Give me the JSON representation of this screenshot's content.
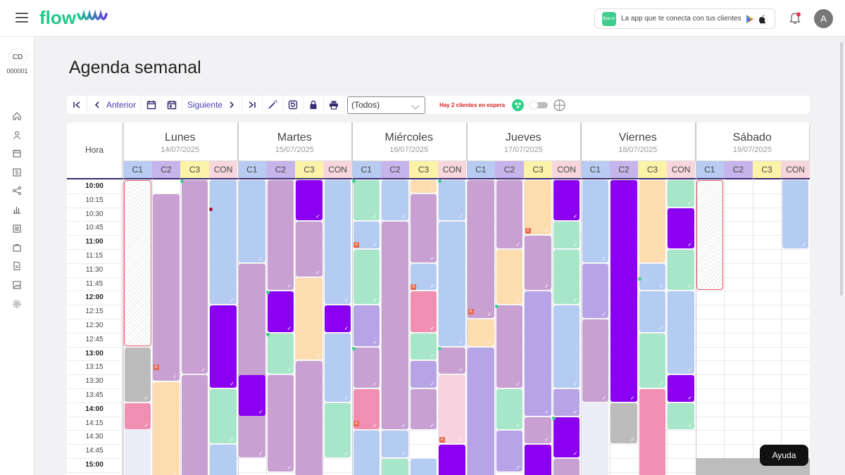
{
  "header": {
    "logo_text": "flow",
    "promo_badge": "flow er",
    "promo_text": "La app que te conecta con tus clientes",
    "avatar_letter": "A"
  },
  "sidebar": {
    "initials": "CD",
    "account_number": "000001",
    "icons": [
      "home-icon",
      "user-icon",
      "calendar-icon",
      "money-icon",
      "share-icon",
      "chart-icon",
      "list-icon",
      "briefcase-icon",
      "document-icon",
      "image-icon",
      "gear-icon"
    ]
  },
  "page": {
    "title": "Agenda semanal"
  },
  "toolbar": {
    "prev_label": "Anterior",
    "next_label": "Siguiente",
    "filter_value": "(Todos)",
    "waiting_text": "Hay 2 clientes en espera"
  },
  "grid": {
    "hora_label": "Hora",
    "days": [
      {
        "name": "Lunes",
        "date": "14/07/2025"
      },
      {
        "name": "Martes",
        "date": "15/07/2025"
      },
      {
        "name": "Miércoles",
        "date": "16/07/2025"
      },
      {
        "name": "Jueves",
        "date": "17/07/2025"
      },
      {
        "name": "Viernes",
        "date": "18/07/2025"
      },
      {
        "name": "Sábado",
        "date": "19/07/2025"
      }
    ],
    "columns": [
      "C1",
      "C2",
      "C3",
      "CON"
    ],
    "column_colors": [
      "#b8ccf2",
      "#c6b5ea",
      "#fdf3a8",
      "#f7d6de"
    ],
    "times": [
      "10:00",
      "10:15",
      "10:30",
      "10:45",
      "11:00",
      "11:15",
      "11:30",
      "11:45",
      "12:00",
      "12:15",
      "12:30",
      "12:45",
      "13:00",
      "13:15",
      "13:30",
      "13:45",
      "14:00",
      "14:15",
      "14:30",
      "14:45",
      "15:00"
    ]
  },
  "colors": {
    "blue": "#b4cbf2",
    "purple": "#c8a0d2",
    "lilac": "#b7a4e6",
    "violet": "#8b00f0",
    "peach": "#fddcb0",
    "mint": "#a8e6c9",
    "pink": "#f18fb2",
    "lightpink": "#f8d3df",
    "gray": "#bcbcbc"
  },
  "help_label": "Ayuda"
}
